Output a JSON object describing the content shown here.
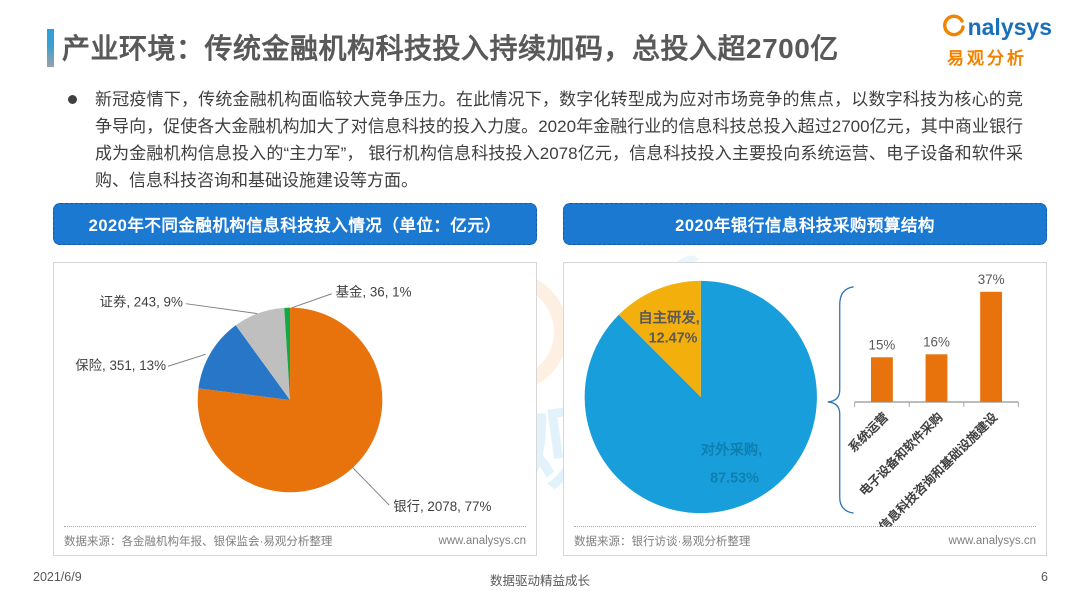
{
  "colors": {
    "banner_blue": "#1B79D2",
    "accent_blue": "#2BA0DC",
    "title_gray": "#595959",
    "body_text": "#3F3F3F",
    "source_gray": "#7F7F7F",
    "brand_blue": "#1A6FBA",
    "brand_orange": "#F08300"
  },
  "header": {
    "title": "产业环境：传统金融机构科技投入持续加码，总投入超2700亿",
    "logo": {
      "wordmark": "nalysys",
      "cn": "易观分析"
    }
  },
  "intro": {
    "text": "新冠疫情下，传统金融机构面临较大竞争压力。在此情况下，数字化转型成为应对市场竞争的焦点，以数字科技为核心的竞争导向，促使各大金融机构加大了对信息科技的投入力度。2020年金融行业的信息科技总投入超过2700亿元，其中商业银行成为金融机构信息投入的“主力军”， 银行机构信息科技投入2078亿元，信息科技投入主要投向系统运营、电子设备和软件采购、信息科技咨询和基础设施建设等方面。"
  },
  "left_panel": {
    "header": "2020年不同金融机构信息科技投入情况（单位：亿元）",
    "source": "数据来源：各金融机构年报、银保监会·易观分析整理",
    "site": "www.analysys.cn"
  },
  "right_panel": {
    "header": "2020年银行信息科技采购预算结构",
    "source": "数据来源：银行访谈·易观分析整理",
    "site": "www.analysys.cn"
  },
  "footer": {
    "date": "2021/6/9",
    "slogan": "数据驱动精益成长",
    "page": "6"
  },
  "watermark": {
    "cn": "易观",
    "en": "ysys"
  },
  "chart_data": [
    {
      "type": "pie",
      "title": "2020年不同金融机构信息科技投入情况",
      "unit": "亿元",
      "start_angle_deg": 0,
      "direction": "clockwise",
      "slices": [
        {
          "label": "银行",
          "value": 2078,
          "pct": 77,
          "color": "#E8720C",
          "display": "银行, 2078, 77%"
        },
        {
          "label": "保险",
          "value": 351,
          "pct": 13,
          "color": "#2776C8",
          "display": "保险, 351, 13%"
        },
        {
          "label": "证券",
          "value": 243,
          "pct": 9,
          "color": "#BFBFBF",
          "display": "证券, 243, 9%"
        },
        {
          "label": "基金",
          "value": 36,
          "pct": 1,
          "color": "#12A843",
          "display": "基金, 36, 1%"
        }
      ]
    },
    {
      "type": "pie",
      "title": "2020年银行信息科技采购预算结构",
      "start_angle_deg": 0,
      "direction": "clockwise",
      "slices": [
        {
          "label": "对外采购",
          "pct": 87.53,
          "color": "#189FDB",
          "display_name": "对外采购,",
          "display_pct": "87.53%",
          "label_color": "#0E7FAE"
        },
        {
          "label": "自主研发",
          "pct": 12.47,
          "color": "#F3AF0C",
          "display_name": "自主研发,",
          "display_pct": "12.47%",
          "label_color": "#595959"
        }
      ]
    },
    {
      "type": "bar",
      "categories": [
        "系统运营",
        "电子设备和软件采购",
        "信息科技咨询和基础设施建设"
      ],
      "values": [
        15,
        16,
        37
      ],
      "value_labels": [
        "15%",
        "16%",
        "37%"
      ],
      "bar_color": "#E8720C",
      "ylim": [
        0,
        40
      ]
    }
  ]
}
